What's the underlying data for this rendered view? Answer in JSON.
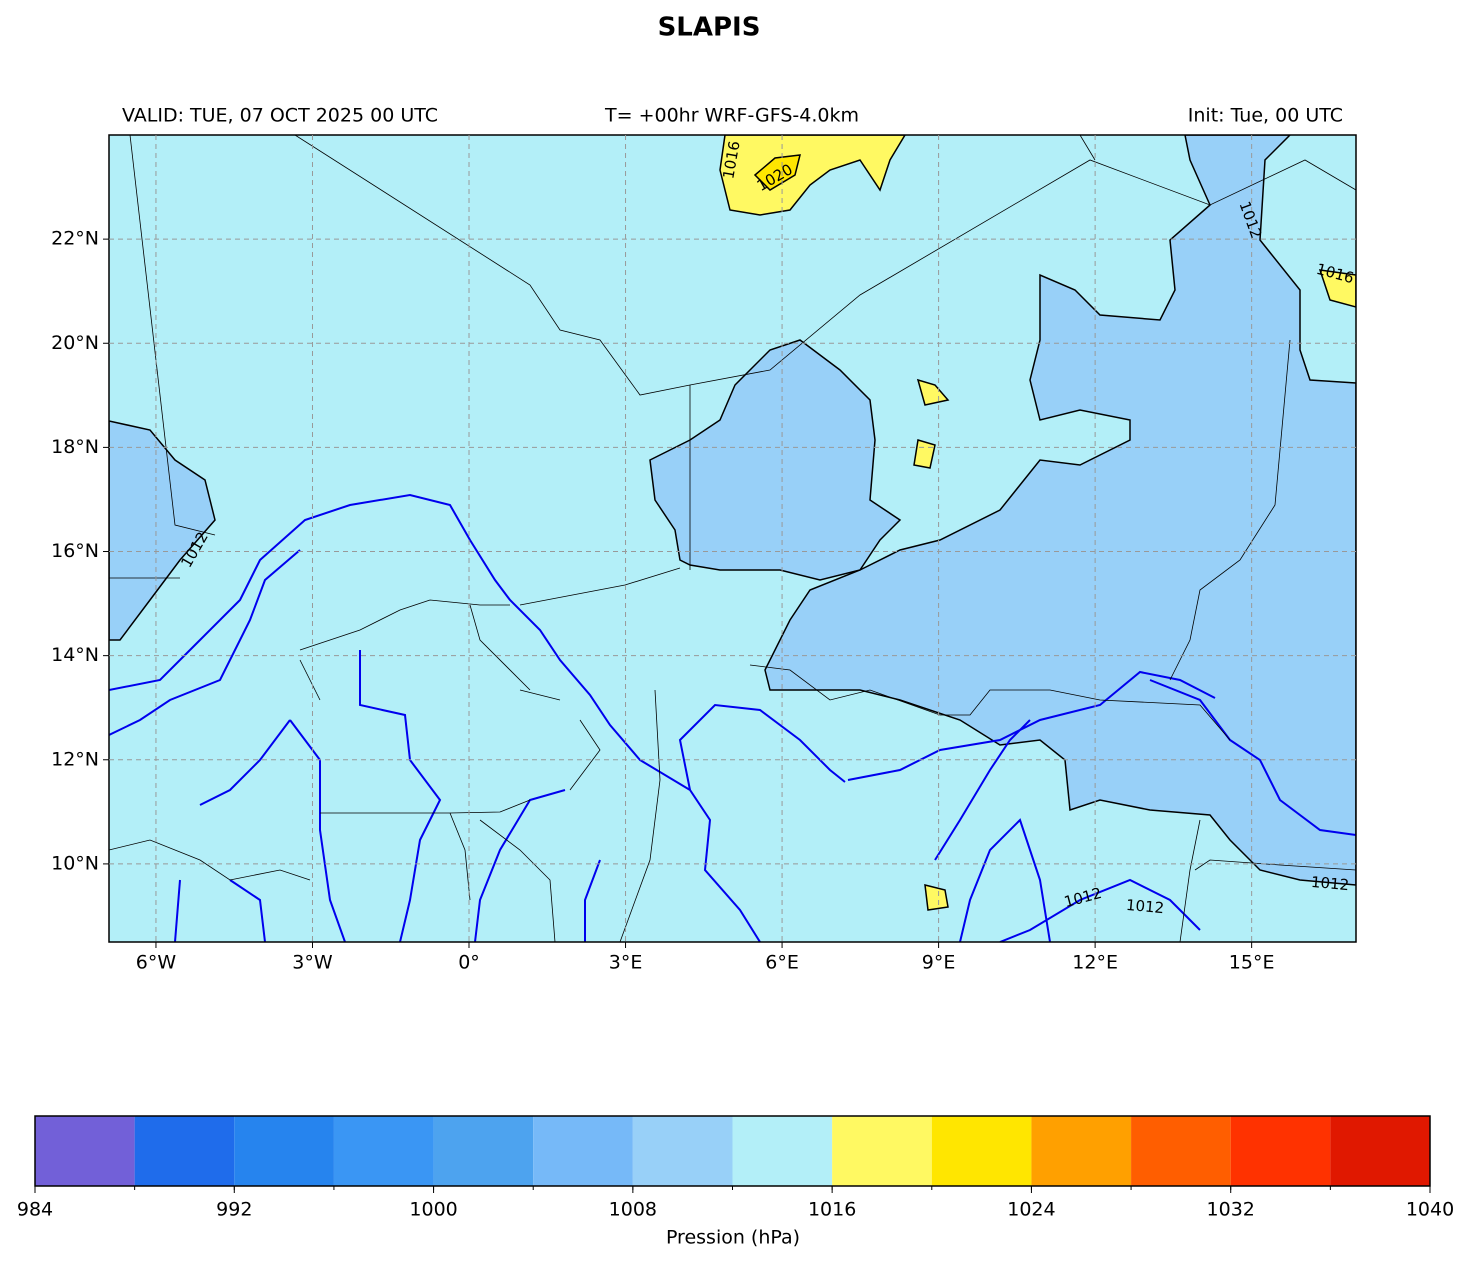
{
  "title": "SLAPIS",
  "valid": "VALID: TUE, 07 OCT 2025 00 UTC",
  "run": "T= +00hr WRF-GFS-4.0km",
  "init": "Init: Tue, 00 UTC",
  "map": {
    "xlim": [
      -6.9,
      17
    ],
    "ylim": [
      8.5,
      24
    ],
    "xticks": [
      {
        "value": -6,
        "label": "6°W"
      },
      {
        "value": -3,
        "label": "3°W"
      },
      {
        "value": 0,
        "label": "0°"
      },
      {
        "value": 3,
        "label": "3°E"
      },
      {
        "value": 6,
        "label": "6°E"
      },
      {
        "value": 9,
        "label": "9°E"
      },
      {
        "value": 12,
        "label": "12°E"
      },
      {
        "value": 15,
        "label": "15°E"
      }
    ],
    "yticks": [
      {
        "value": 10,
        "label": "10°N"
      },
      {
        "value": 12,
        "label": "12°N"
      },
      {
        "value": 14,
        "label": "14°N"
      },
      {
        "value": 16,
        "label": "16°N"
      },
      {
        "value": 18,
        "label": "18°N"
      },
      {
        "value": 20,
        "label": "20°N"
      },
      {
        "value": 22,
        "label": "22°N"
      }
    ],
    "contour_labels": [
      "1016",
      "1020",
      "1016",
      "1012",
      "1012",
      "1012",
      "1012",
      "1012"
    ]
  },
  "colorbar": {
    "label": "Pression (hPa)",
    "levels": [
      984,
      988,
      992,
      996,
      1000,
      1004,
      1008,
      1012,
      1016,
      1020,
      1024,
      1028,
      1032,
      1036,
      1040
    ],
    "colors": [
      "#7260d8",
      "#1f6ceb",
      "#2684ee",
      "#3a96f4",
      "#4da3ef",
      "#76b9f8",
      "#98d0f8",
      "#b3eff8",
      "#fff962",
      "#ffe600",
      "#ffa000",
      "#ff5e00",
      "#ff3200",
      "#e01800"
    ],
    "ticks": [
      984,
      992,
      1000,
      1008,
      1016,
      1024,
      1032,
      1040
    ]
  }
}
